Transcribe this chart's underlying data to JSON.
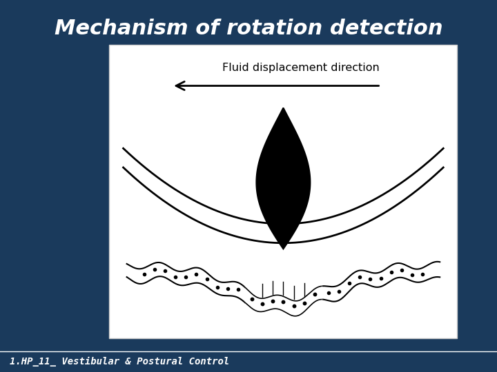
{
  "title": "Mechanism of rotation detection",
  "title_color": "#FFFFFF",
  "title_fontsize": 22,
  "title_style": "italic",
  "title_weight": "bold",
  "bg_color": "#1a3a5c",
  "footer_text": "1.HP_11_ Vestibular & Postural Control",
  "footer_color": "#FFFFFF",
  "footer_fontsize": 10,
  "panel_bg": "#FFFFFF",
  "arrow_label": "Fluid displacement direction",
  "arrow_label_fontsize": 13
}
